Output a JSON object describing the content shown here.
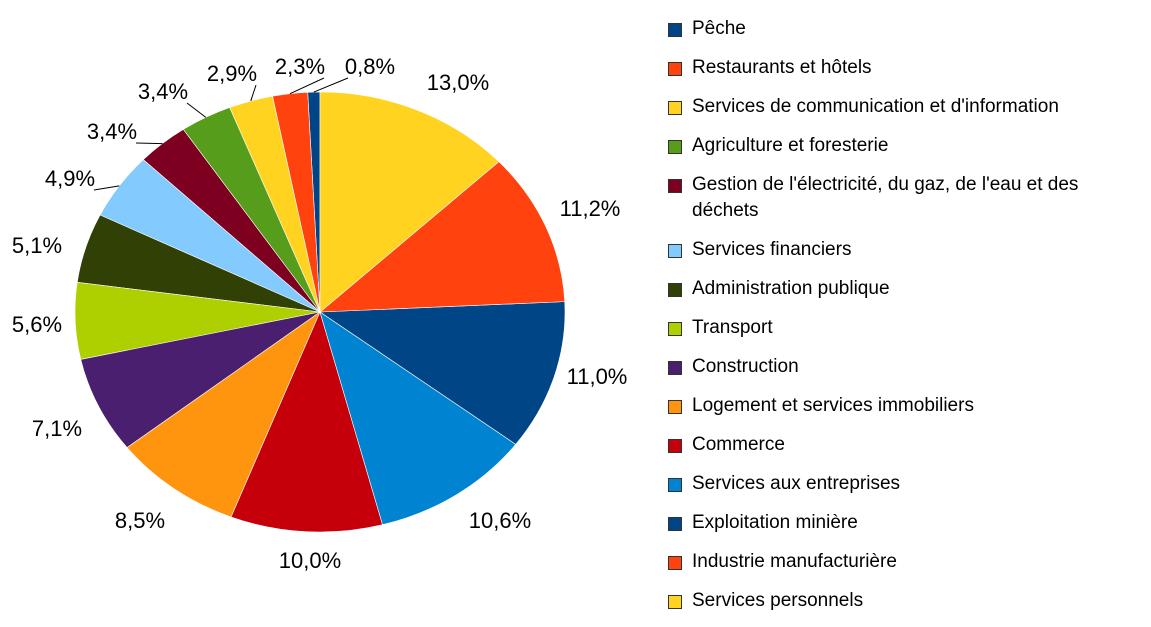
{
  "chart_data": {
    "type": "pie",
    "categories": [
      "Pêche",
      "Restaurants et hôtels",
      "Services de communication et d'information",
      "Agriculture et foresterie",
      "Gestion de l'électricité, du gaz, de l'eau et des déchets",
      "Services financiers",
      "Administration publique",
      "Transport",
      "Construction",
      "Logement et services immobiliers",
      "Commerce",
      "Services aux entreprises",
      "Exploitation minière",
      "Industrie manufacturière",
      "Services personnels"
    ],
    "values": [
      0.8,
      2.3,
      2.9,
      3.4,
      3.4,
      4.9,
      5.1,
      5.6,
      7.1,
      8.5,
      10.0,
      10.6,
      11.0,
      11.2,
      13.0
    ],
    "value_labels": [
      "0,8%",
      "2,3%",
      "2,9%",
      "3,4%",
      "3,4%",
      "4,9%",
      "5,1%",
      "5,6%",
      "7,1%",
      "8,5%",
      "10,0%",
      "10,6%",
      "11,0%",
      "11,2%",
      "13,0%"
    ],
    "colors": [
      "#004586",
      "#ff420e",
      "#ffd320",
      "#579d1c",
      "#7e0021",
      "#83caff",
      "#314004",
      "#aecf00",
      "#4b1f6f",
      "#ff950e",
      "#c5000b",
      "#0084d1",
      "#004586",
      "#ff420e",
      "#ffd320"
    ],
    "legend": "right"
  }
}
